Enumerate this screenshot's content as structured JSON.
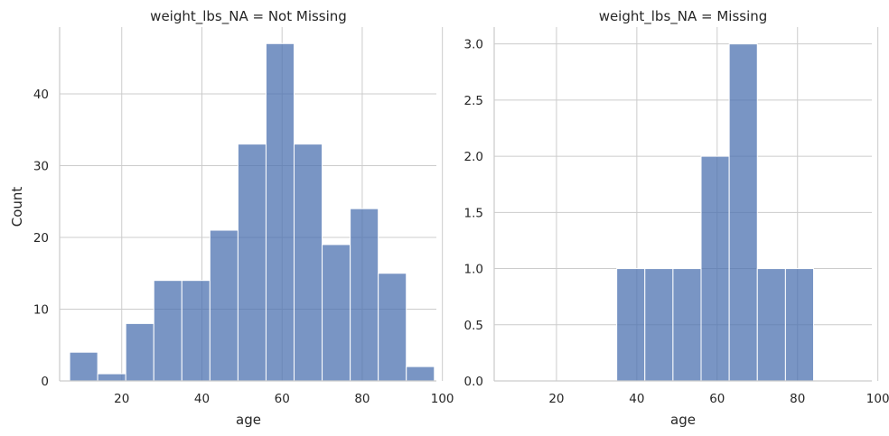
{
  "chart_data": [
    {
      "type": "bar",
      "title": "weight_lbs_NA = Not Missing",
      "xlabel": "age",
      "ylabel": "Count",
      "xlim": [
        4.5,
        98.5
      ],
      "ylim": [
        0,
        49.3
      ],
      "xticks": [
        20,
        40,
        60,
        80,
        100
      ],
      "yticks": [
        0,
        10,
        20,
        30,
        40
      ],
      "grid": true,
      "bar_color": "#4c72b0",
      "bins": [
        {
          "x0": 7,
          "x1": 14,
          "count": 4
        },
        {
          "x0": 14,
          "x1": 21,
          "count": 1
        },
        {
          "x0": 21,
          "x1": 28,
          "count": 8
        },
        {
          "x0": 28,
          "x1": 35,
          "count": 14
        },
        {
          "x0": 35,
          "x1": 42,
          "count": 14
        },
        {
          "x0": 42,
          "x1": 49,
          "count": 21
        },
        {
          "x0": 49,
          "x1": 56,
          "count": 33
        },
        {
          "x0": 56,
          "x1": 63,
          "count": 47
        },
        {
          "x0": 63,
          "x1": 70,
          "count": 33
        },
        {
          "x0": 70,
          "x1": 77,
          "count": 19
        },
        {
          "x0": 77,
          "x1": 84,
          "count": 24
        },
        {
          "x0": 84,
          "x1": 91,
          "count": 15
        },
        {
          "x0": 91,
          "x1": 98,
          "count": 2
        }
      ]
    },
    {
      "type": "bar",
      "title": "weight_lbs_NA = Missing",
      "xlabel": "age",
      "ylabel": "",
      "xlim": [
        4.5,
        98.5
      ],
      "ylim": [
        0,
        3.15
      ],
      "xticks": [
        20,
        40,
        60,
        80,
        100
      ],
      "yticks": [
        0.0,
        0.5,
        1.0,
        1.5,
        2.0,
        2.5,
        3.0
      ],
      "grid": true,
      "bar_color": "#4c72b0",
      "bins": [
        {
          "x0": 35,
          "x1": 42,
          "count": 1
        },
        {
          "x0": 42,
          "x1": 49,
          "count": 1
        },
        {
          "x0": 49,
          "x1": 56,
          "count": 1
        },
        {
          "x0": 56,
          "x1": 63,
          "count": 2
        },
        {
          "x0": 63,
          "x1": 70,
          "count": 3
        },
        {
          "x0": 70,
          "x1": 77,
          "count": 1
        },
        {
          "x0": 77,
          "x1": 84,
          "count": 1
        }
      ]
    }
  ]
}
